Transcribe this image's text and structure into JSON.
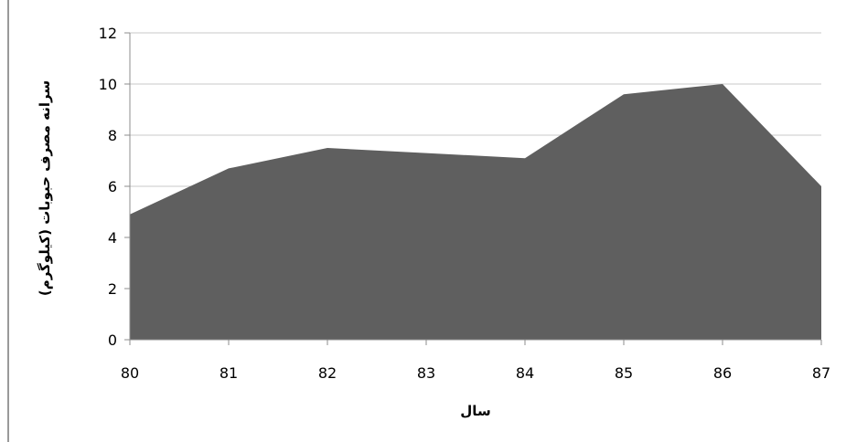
{
  "chart_data": {
    "type": "area",
    "title": "",
    "xlabel": "سال",
    "ylabel": "سرانه مصرف حبوبات (کیلوگرم)",
    "x": [
      80,
      81,
      82,
      83,
      84,
      85,
      86,
      87
    ],
    "x_tick_labels": [
      "80",
      "81",
      "82",
      "83",
      "84",
      "85",
      "86",
      "87"
    ],
    "series": [
      {
        "values": [
          4.9,
          6.7,
          7.5,
          7.3,
          7.1,
          9.6,
          10.0,
          6.0
        ]
      }
    ],
    "ylim": [
      0,
      12
    ],
    "y_ticks": [
      0,
      2,
      4,
      6,
      8,
      10,
      12
    ],
    "y_tick_labels": [
      "0",
      "2",
      "4",
      "6",
      "8",
      "10",
      "12"
    ],
    "grid": true,
    "legend": "none",
    "colors": {
      "area_fill": "#5f5f5f",
      "grid_line": "#c8c8c8",
      "axis_line": "#8c8c8c",
      "text": "#000000"
    }
  }
}
